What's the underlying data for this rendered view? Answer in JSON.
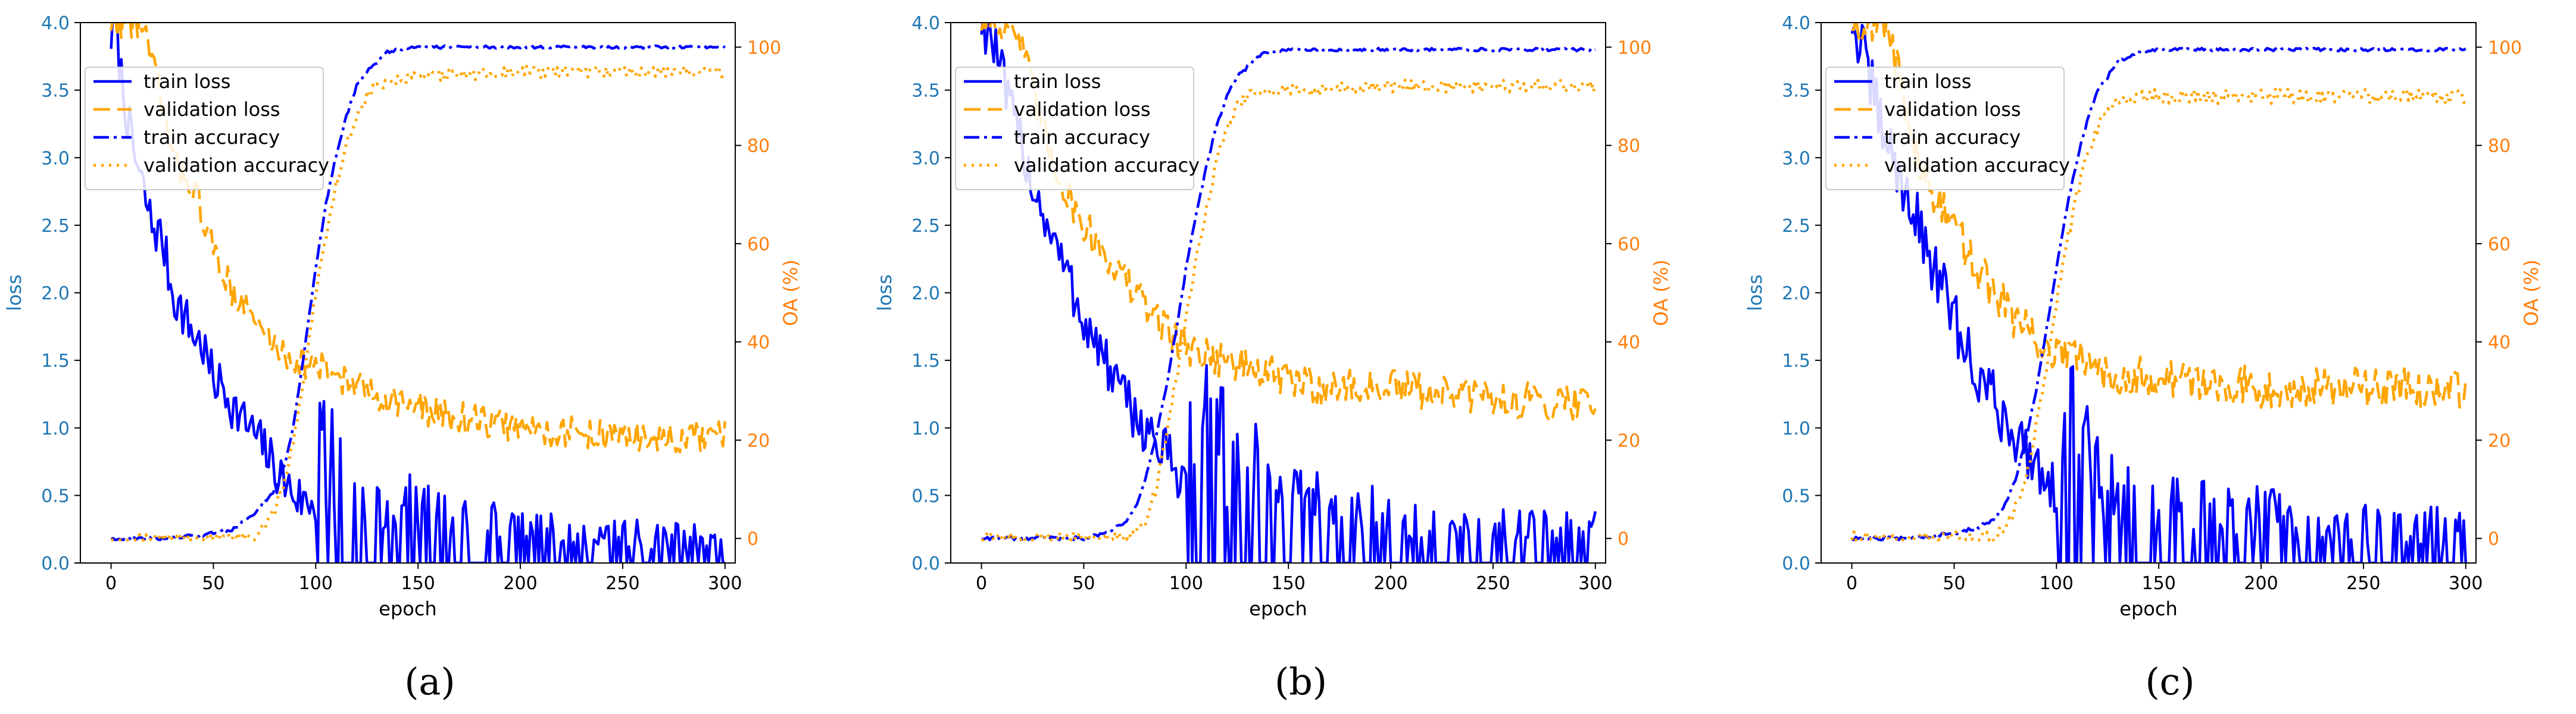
{
  "figure": {
    "panel_captions": [
      "(a)",
      "(b)",
      "(c)"
    ],
    "colors": {
      "blue": "#0000ff",
      "orange": "#ffa500",
      "left_axis": "#1f77b4",
      "right_axis": "#ff7f0e"
    }
  },
  "chart_data": [
    {
      "type": "line",
      "panel": "(a)",
      "title": "",
      "xlabel": "epoch",
      "ylabel": "loss",
      "y2label": "OA (%)",
      "xlim": [
        -15,
        305
      ],
      "ylim": [
        0,
        4.0
      ],
      "y2lim": [
        -5,
        105
      ],
      "xticks": [
        0,
        50,
        100,
        150,
        200,
        250,
        300
      ],
      "yticks": [
        0.0,
        0.5,
        1.0,
        1.5,
        2.0,
        2.5,
        3.0,
        3.5,
        4.0
      ],
      "y2ticks": [
        0,
        20,
        40,
        60,
        80,
        100
      ],
      "legend_position": "upper-left",
      "series": [
        {
          "name": "train loss",
          "axis": "left",
          "color": "#0000ff",
          "style": "solid",
          "x": [
            0,
            2,
            5,
            10,
            15,
            20,
            25,
            30,
            35,
            40,
            45,
            50,
            55,
            60,
            65,
            70,
            75,
            80,
            85,
            90,
            95,
            100,
            105,
            110,
            115,
            120,
            130,
            140,
            150,
            160,
            170,
            180,
            190,
            200,
            210,
            220,
            230,
            240,
            250,
            260,
            270,
            280,
            290,
            300
          ],
          "values": [
            3.9,
            4.0,
            3.6,
            3.1,
            2.8,
            2.5,
            2.4,
            2.0,
            1.85,
            1.7,
            1.6,
            1.35,
            1.3,
            1.15,
            1.05,
            0.95,
            0.85,
            0.7,
            0.6,
            0.5,
            0.45,
            0.45,
            0.42,
            0.4,
            0.35,
            0.3,
            0.25,
            0.22,
            0.2,
            0.18,
            0.16,
            0.15,
            0.14,
            0.13,
            0.12,
            0.12,
            0.11,
            0.11,
            0.1,
            0.1,
            0.1,
            0.09,
            0.09,
            0.1
          ],
          "noise": 0.18
        },
        {
          "name": "validation loss",
          "axis": "left",
          "color": "#ffa500",
          "style": "dashed",
          "x": [
            0,
            15,
            20,
            25,
            30,
            40,
            50,
            60,
            70,
            80,
            90,
            100,
            110,
            120,
            130,
            140,
            150,
            160,
            180,
            200,
            220,
            240,
            260,
            280,
            300
          ],
          "values": [
            4.0,
            4.0,
            3.7,
            3.4,
            3.0,
            2.8,
            2.3,
            2.0,
            1.8,
            1.6,
            1.5,
            1.45,
            1.4,
            1.3,
            1.25,
            1.2,
            1.15,
            1.1,
            1.05,
            1.0,
            0.97,
            0.95,
            0.93,
            0.9,
            0.95
          ],
          "noise": 0.12
        },
        {
          "name": "train accuracy",
          "axis": "right",
          "color": "#0000ff",
          "style": "dashdot",
          "x": [
            0,
            30,
            50,
            60,
            70,
            80,
            85,
            90,
            95,
            100,
            105,
            110,
            115,
            120,
            125,
            130,
            135,
            140,
            150,
            200,
            250,
            300
          ],
          "values": [
            0,
            0,
            1,
            2,
            5,
            10,
            15,
            25,
            40,
            55,
            68,
            78,
            86,
            92,
            95,
            97,
            99,
            99.5,
            100,
            100,
            100,
            100
          ],
          "noise": 0.4
        },
        {
          "name": "validation accuracy",
          "axis": "right",
          "color": "#ffa500",
          "style": "dotted",
          "x": [
            0,
            60,
            70,
            75,
            80,
            85,
            90,
            95,
            100,
            105,
            110,
            115,
            120,
            125,
            130,
            140,
            150,
            200,
            250,
            300
          ],
          "values": [
            0,
            0,
            0,
            2,
            6,
            12,
            22,
            35,
            50,
            62,
            72,
            80,
            86,
            90,
            92,
            93,
            94,
            95,
            95,
            95
          ],
          "noise": 1.2
        }
      ]
    },
    {
      "type": "line",
      "panel": "(b)",
      "title": "",
      "xlabel": "epoch",
      "ylabel": "loss",
      "y2label": "OA (%)",
      "xlim": [
        -15,
        305
      ],
      "ylim": [
        0,
        4.0
      ],
      "y2lim": [
        -5,
        105
      ],
      "xticks": [
        0,
        50,
        100,
        150,
        200,
        250,
        300
      ],
      "yticks": [
        0.0,
        0.5,
        1.0,
        1.5,
        2.0,
        2.5,
        3.0,
        3.5,
        4.0
      ],
      "y2ticks": [
        0,
        20,
        40,
        60,
        80,
        100
      ],
      "legend_position": "upper-left",
      "series": [
        {
          "name": "train loss",
          "axis": "left",
          "color": "#0000ff",
          "style": "solid",
          "x": [
            0,
            5,
            10,
            15,
            20,
            25,
            30,
            35,
            40,
            45,
            50,
            55,
            60,
            65,
            70,
            75,
            80,
            85,
            90,
            95,
            100,
            110,
            120,
            130,
            140,
            150,
            170,
            200,
            230,
            260,
            300
          ],
          "values": [
            4.0,
            3.9,
            3.6,
            3.3,
            3.1,
            2.8,
            2.6,
            2.4,
            2.2,
            2.0,
            1.8,
            1.65,
            1.5,
            1.35,
            1.2,
            1.1,
            1.0,
            0.9,
            0.8,
            0.7,
            0.6,
            0.5,
            0.4,
            0.35,
            0.3,
            0.25,
            0.2,
            0.17,
            0.15,
            0.13,
            0.12
          ],
          "noise": 0.2
        },
        {
          "name": "validation loss",
          "axis": "left",
          "color": "#ffa500",
          "style": "dashed",
          "x": [
            0,
            15,
            20,
            25,
            30,
            40,
            50,
            60,
            70,
            80,
            90,
            100,
            110,
            120,
            130,
            140,
            150,
            170,
            200,
            230,
            260,
            300
          ],
          "values": [
            4.0,
            4.0,
            3.8,
            3.5,
            3.2,
            2.8,
            2.5,
            2.3,
            2.1,
            1.9,
            1.75,
            1.6,
            1.55,
            1.5,
            1.45,
            1.4,
            1.35,
            1.3,
            1.3,
            1.25,
            1.2,
            1.2
          ],
          "noise": 0.14
        },
        {
          "name": "train accuracy",
          "axis": "right",
          "color": "#0000ff",
          "style": "dashdot",
          "x": [
            0,
            30,
            50,
            60,
            70,
            75,
            80,
            85,
            90,
            95,
            100,
            105,
            110,
            115,
            120,
            125,
            130,
            135,
            140,
            150,
            200,
            250,
            300
          ],
          "values": [
            0,
            0,
            0,
            1,
            3,
            6,
            12,
            20,
            30,
            42,
            55,
            66,
            76,
            84,
            90,
            94,
            96,
            98,
            99,
            99.5,
            99.5,
            99.5,
            99.5
          ],
          "noise": 0.4
        },
        {
          "name": "validation accuracy",
          "axis": "right",
          "color": "#ffa500",
          "style": "dotted",
          "x": [
            0,
            60,
            70,
            75,
            80,
            85,
            90,
            95,
            100,
            105,
            110,
            115,
            120,
            125,
            130,
            140,
            150,
            200,
            250,
            300
          ],
          "values": [
            0,
            0,
            0,
            1,
            4,
            10,
            20,
            32,
            45,
            57,
            68,
            77,
            84,
            88,
            90,
            91,
            91,
            92,
            92,
            92
          ],
          "noise": 1.3
        }
      ]
    },
    {
      "type": "line",
      "panel": "(c)",
      "title": "",
      "xlabel": "epoch",
      "ylabel": "loss",
      "y2label": "OA (%)",
      "xlim": [
        -15,
        305
      ],
      "ylim": [
        0,
        4.0
      ],
      "y2lim": [
        -5,
        105
      ],
      "xticks": [
        0,
        50,
        100,
        150,
        200,
        250,
        300
      ],
      "yticks": [
        0.0,
        0.5,
        1.0,
        1.5,
        2.0,
        2.5,
        3.0,
        3.5,
        4.0
      ],
      "y2ticks": [
        0,
        20,
        40,
        60,
        80,
        100
      ],
      "legend_position": "upper-left",
      "series": [
        {
          "name": "train loss",
          "axis": "left",
          "color": "#0000ff",
          "style": "solid",
          "x": [
            0,
            5,
            10,
            15,
            20,
            25,
            30,
            35,
            40,
            45,
            50,
            55,
            60,
            65,
            70,
            75,
            80,
            85,
            90,
            95,
            100,
            110,
            120,
            130,
            140,
            150,
            170,
            200,
            230,
            260,
            300
          ],
          "values": [
            4.0,
            3.8,
            3.5,
            3.2,
            3.0,
            2.8,
            2.6,
            2.4,
            2.2,
            2.0,
            1.8,
            1.6,
            1.45,
            1.3,
            1.2,
            1.05,
            0.95,
            0.85,
            0.75,
            0.65,
            0.55,
            0.45,
            0.35,
            0.3,
            0.25,
            0.22,
            0.2,
            0.18,
            0.15,
            0.14,
            0.13
          ],
          "noise": 0.22
        },
        {
          "name": "validation loss",
          "axis": "left",
          "color": "#ffa500",
          "style": "dashed",
          "x": [
            0,
            15,
            20,
            25,
            30,
            40,
            50,
            60,
            70,
            80,
            90,
            100,
            110,
            120,
            130,
            140,
            150,
            170,
            200,
            230,
            260,
            300
          ],
          "values": [
            4.0,
            4.0,
            3.8,
            3.5,
            3.1,
            2.7,
            2.5,
            2.2,
            2.0,
            1.8,
            1.65,
            1.55,
            1.5,
            1.45,
            1.4,
            1.4,
            1.35,
            1.35,
            1.3,
            1.3,
            1.3,
            1.3
          ],
          "noise": 0.15
        },
        {
          "name": "train accuracy",
          "axis": "right",
          "color": "#0000ff",
          "style": "dashdot",
          "x": [
            0,
            30,
            50,
            60,
            70,
            75,
            80,
            85,
            90,
            95,
            100,
            105,
            110,
            115,
            120,
            125,
            130,
            135,
            140,
            150,
            200,
            250,
            300
          ],
          "values": [
            0,
            0,
            1,
            2,
            4,
            7,
            12,
            20,
            30,
            42,
            55,
            67,
            77,
            85,
            91,
            94,
            97,
            98,
            99,
            99.5,
            99.5,
            99.5,
            99.5
          ],
          "noise": 0.4
        },
        {
          "name": "validation accuracy",
          "axis": "right",
          "color": "#ffa500",
          "style": "dotted",
          "x": [
            0,
            60,
            70,
            75,
            80,
            85,
            90,
            95,
            100,
            105,
            110,
            115,
            120,
            125,
            130,
            140,
            150,
            200,
            250,
            300
          ],
          "values": [
            0,
            0,
            0,
            2,
            6,
            12,
            22,
            34,
            48,
            60,
            70,
            78,
            84,
            87,
            89,
            90,
            90,
            90,
            90,
            90
          ],
          "noise": 1.5
        }
      ]
    }
  ]
}
